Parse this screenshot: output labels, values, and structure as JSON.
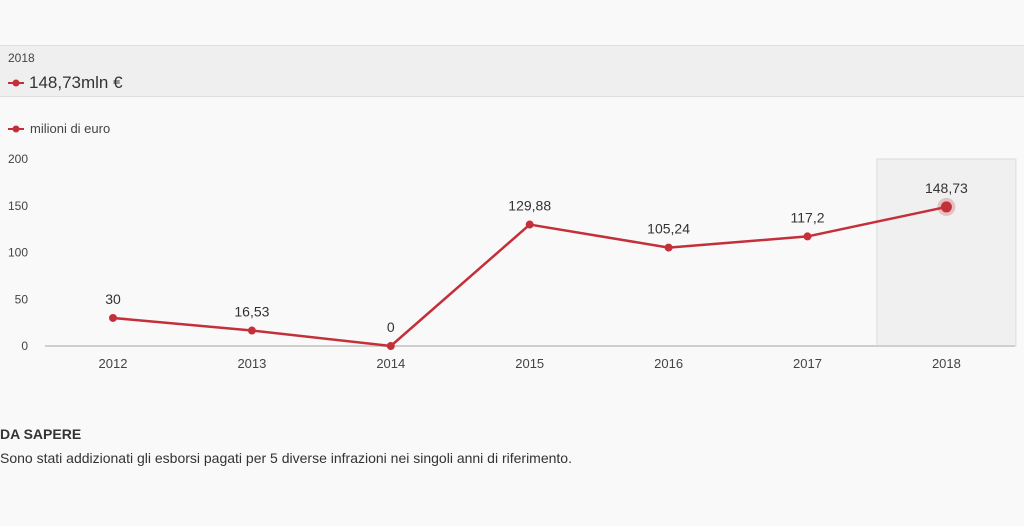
{
  "tooltip": {
    "year": "2018",
    "value": "148,73mln €"
  },
  "legend": {
    "label": "milioni di euro"
  },
  "colors": {
    "series": "#c4303a",
    "highlight": "#f0f0f0"
  },
  "chart_data": {
    "type": "line",
    "categories": [
      "2012",
      "2013",
      "2014",
      "2015",
      "2016",
      "2017",
      "2018"
    ],
    "series": [
      {
        "name": "milioni di euro",
        "values": [
          30,
          16.53,
          0,
          129.88,
          105.24,
          117.2,
          148.73
        ],
        "labels": [
          "30",
          "16,53",
          "0",
          "129,88",
          "105,24",
          "117,2",
          "148,73"
        ]
      }
    ],
    "yticks": [
      "0",
      "50",
      "100",
      "150",
      "200"
    ],
    "ylim": [
      0,
      200
    ],
    "highlighted_category": "2018",
    "legend_position": "top-left",
    "grid": false
  },
  "note": {
    "title": "DA SAPERE",
    "text": "Sono stati addizionati gli esborsi pagati per 5 diverse infrazioni nei singoli anni di riferimento."
  }
}
